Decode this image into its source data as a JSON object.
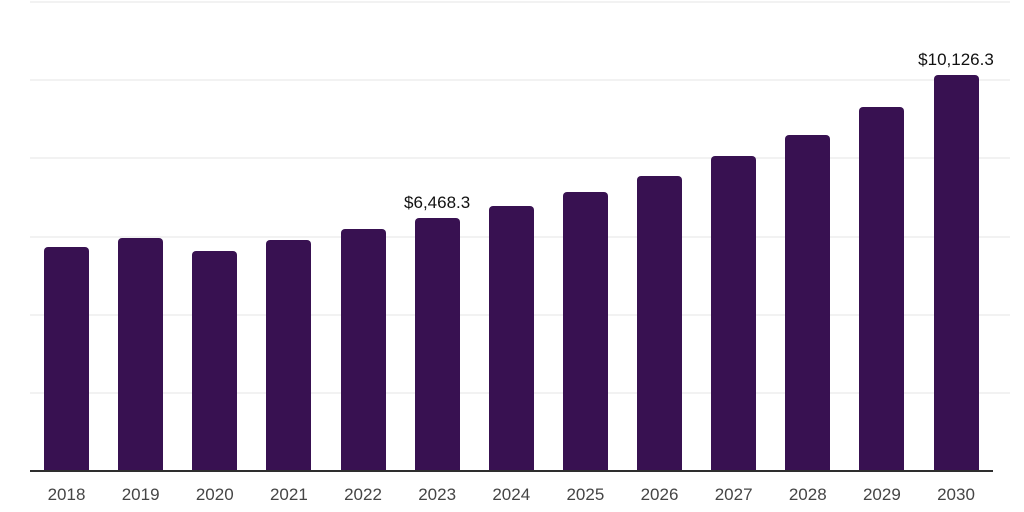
{
  "chart_data": {
    "type": "bar",
    "title": "",
    "xlabel": "",
    "ylabel": "",
    "categories": [
      "2018",
      "2019",
      "2020",
      "2021",
      "2022",
      "2023",
      "2024",
      "2025",
      "2026",
      "2027",
      "2028",
      "2029",
      "2030"
    ],
    "values": [
      5730,
      5960,
      5620,
      5900,
      6180,
      6468.3,
      6780,
      7130,
      7540,
      8050,
      8600,
      9320,
      10126.3
    ],
    "value_labels": {
      "2023": "$6,468.3",
      "2030": "$10,126.3"
    },
    "ylim": [
      0,
      12000
    ],
    "gridline_interval": 2000,
    "grid": "horizontal",
    "y_tick_labels_visible": false,
    "legend": "none",
    "colors": {
      "bar": "#381151",
      "axis_line": "#2e2e2e",
      "gridline": "#f2f2f2",
      "tick_label": "#454545",
      "data_label": "#111111"
    }
  }
}
